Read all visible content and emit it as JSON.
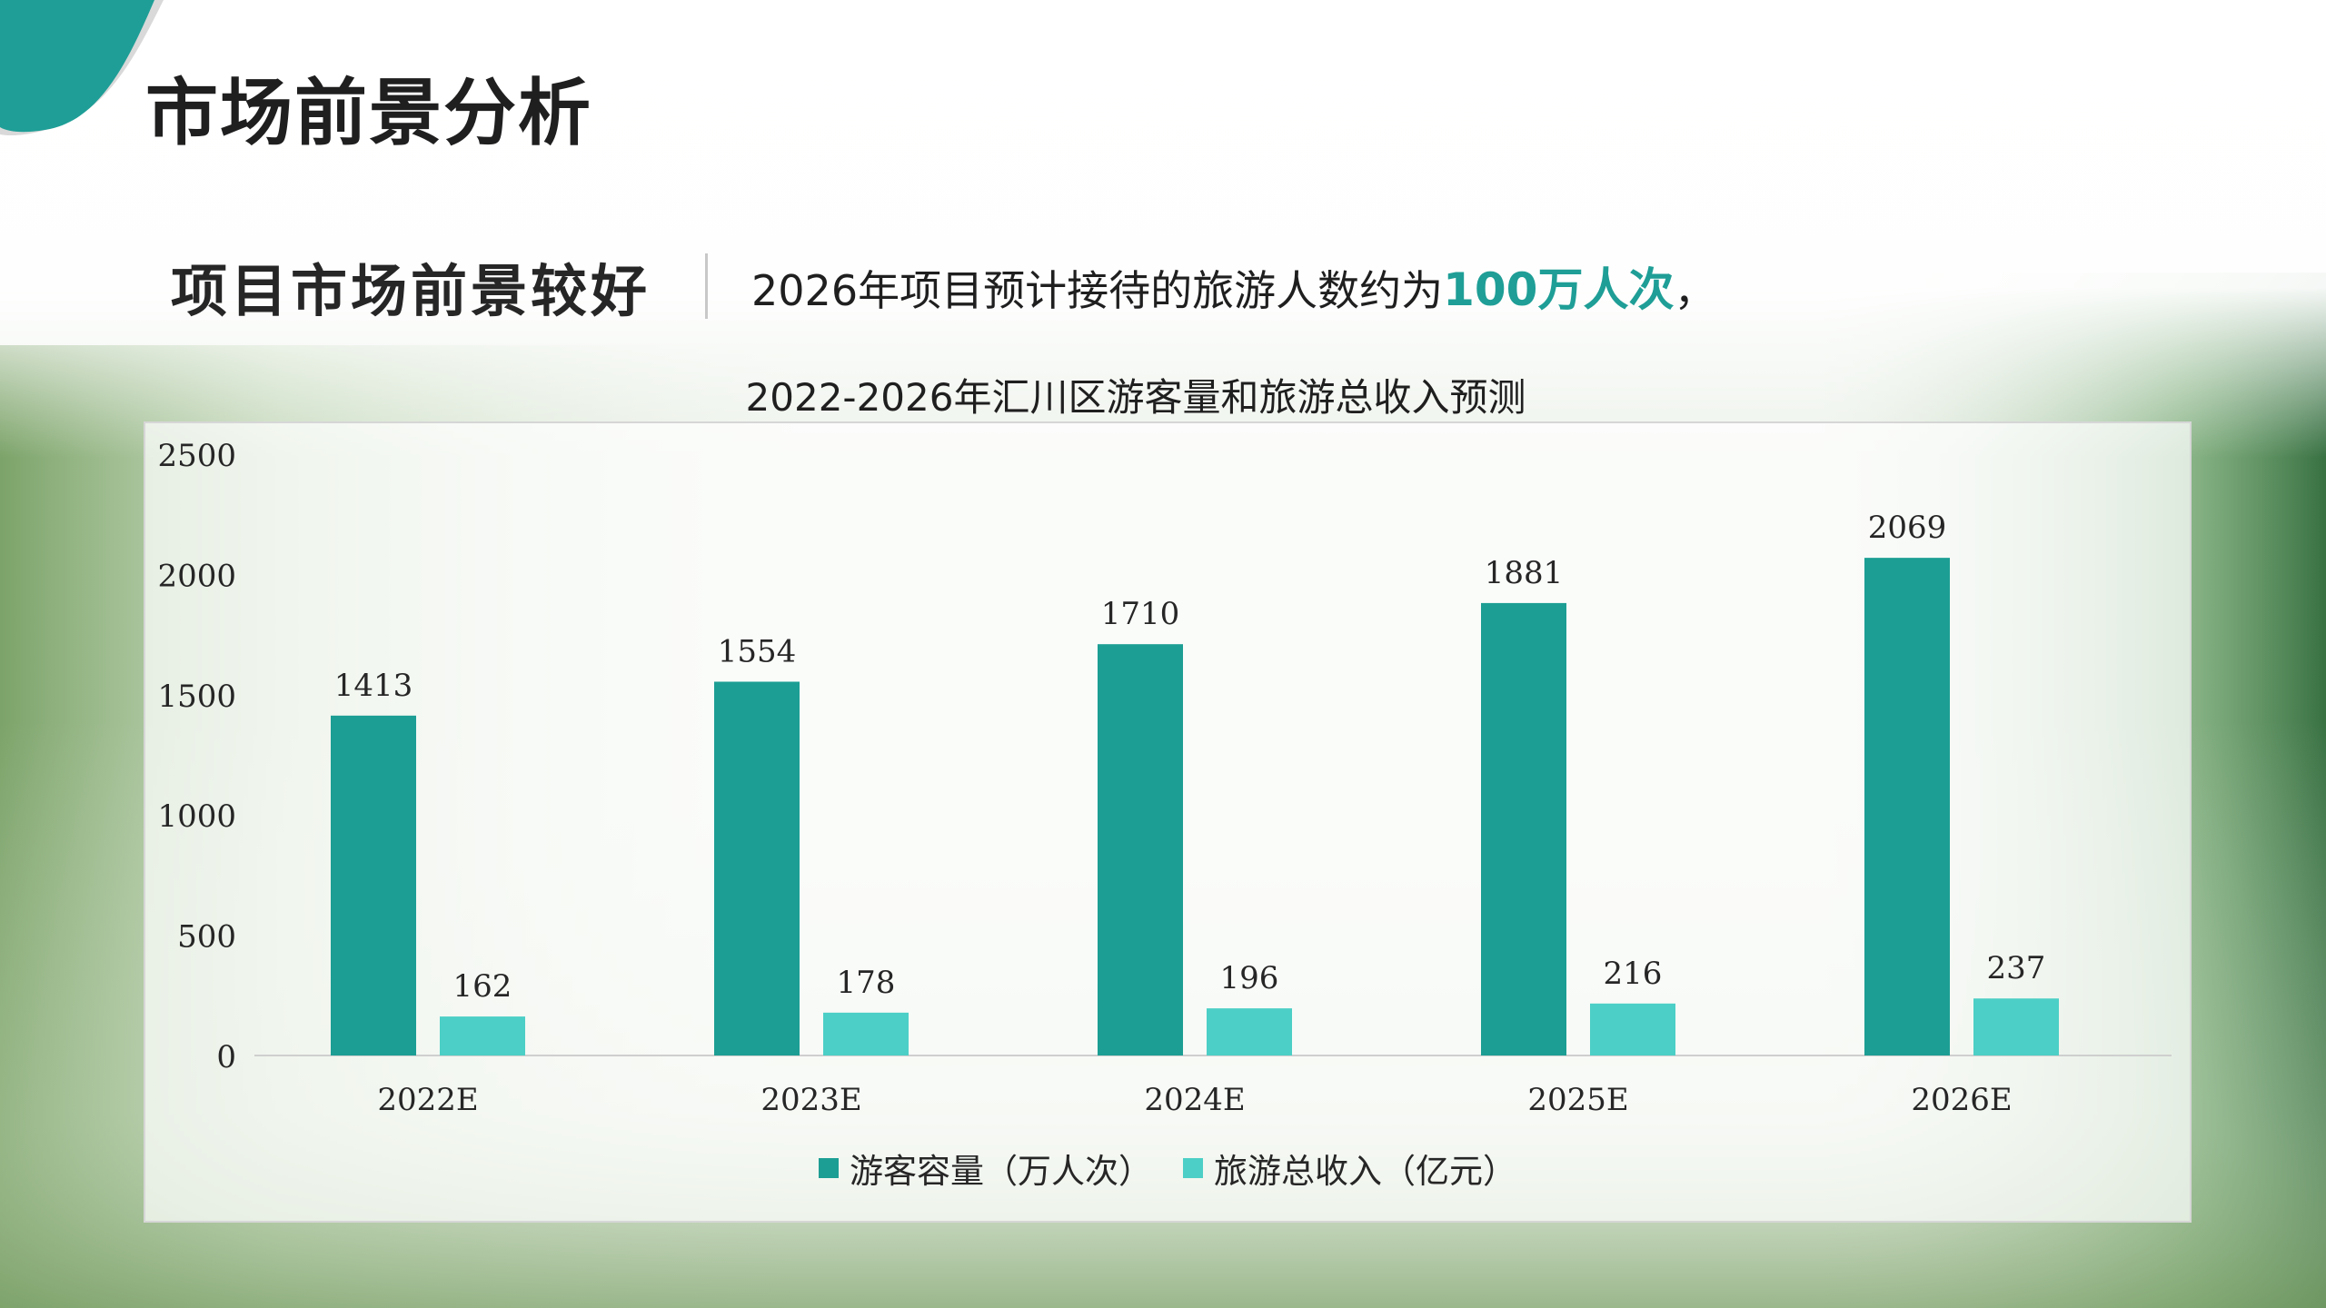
{
  "slide": {
    "title": "市场前景分析",
    "subtitle": "项目市场前景较好",
    "description_prefix": "2026年项目预计接待的旅游人数约为",
    "description_highlight": "100万人次",
    "description_suffix": "，"
  },
  "colors": {
    "accent": "#1e9e96",
    "series1": "#1c9e94",
    "series2": "#4ccfc6"
  },
  "chart_data": {
    "type": "bar",
    "title": "2022-2026年汇川区游客量和旅游总收入预测",
    "categories": [
      "2022E",
      "2023E",
      "2024E",
      "2025E",
      "2026E"
    ],
    "series": [
      {
        "name": "游客容量（万人次）",
        "values": [
          1413,
          1554,
          1710,
          1881,
          2069
        ]
      },
      {
        "name": "旅游总收入（亿元）",
        "values": [
          162,
          178,
          196,
          216,
          237
        ]
      }
    ],
    "yticks": [
      "0",
      "500",
      "1000",
      "1500",
      "2000",
      "2500"
    ],
    "ylim": [
      0,
      2500
    ],
    "grid": false,
    "legend": "bottom"
  }
}
